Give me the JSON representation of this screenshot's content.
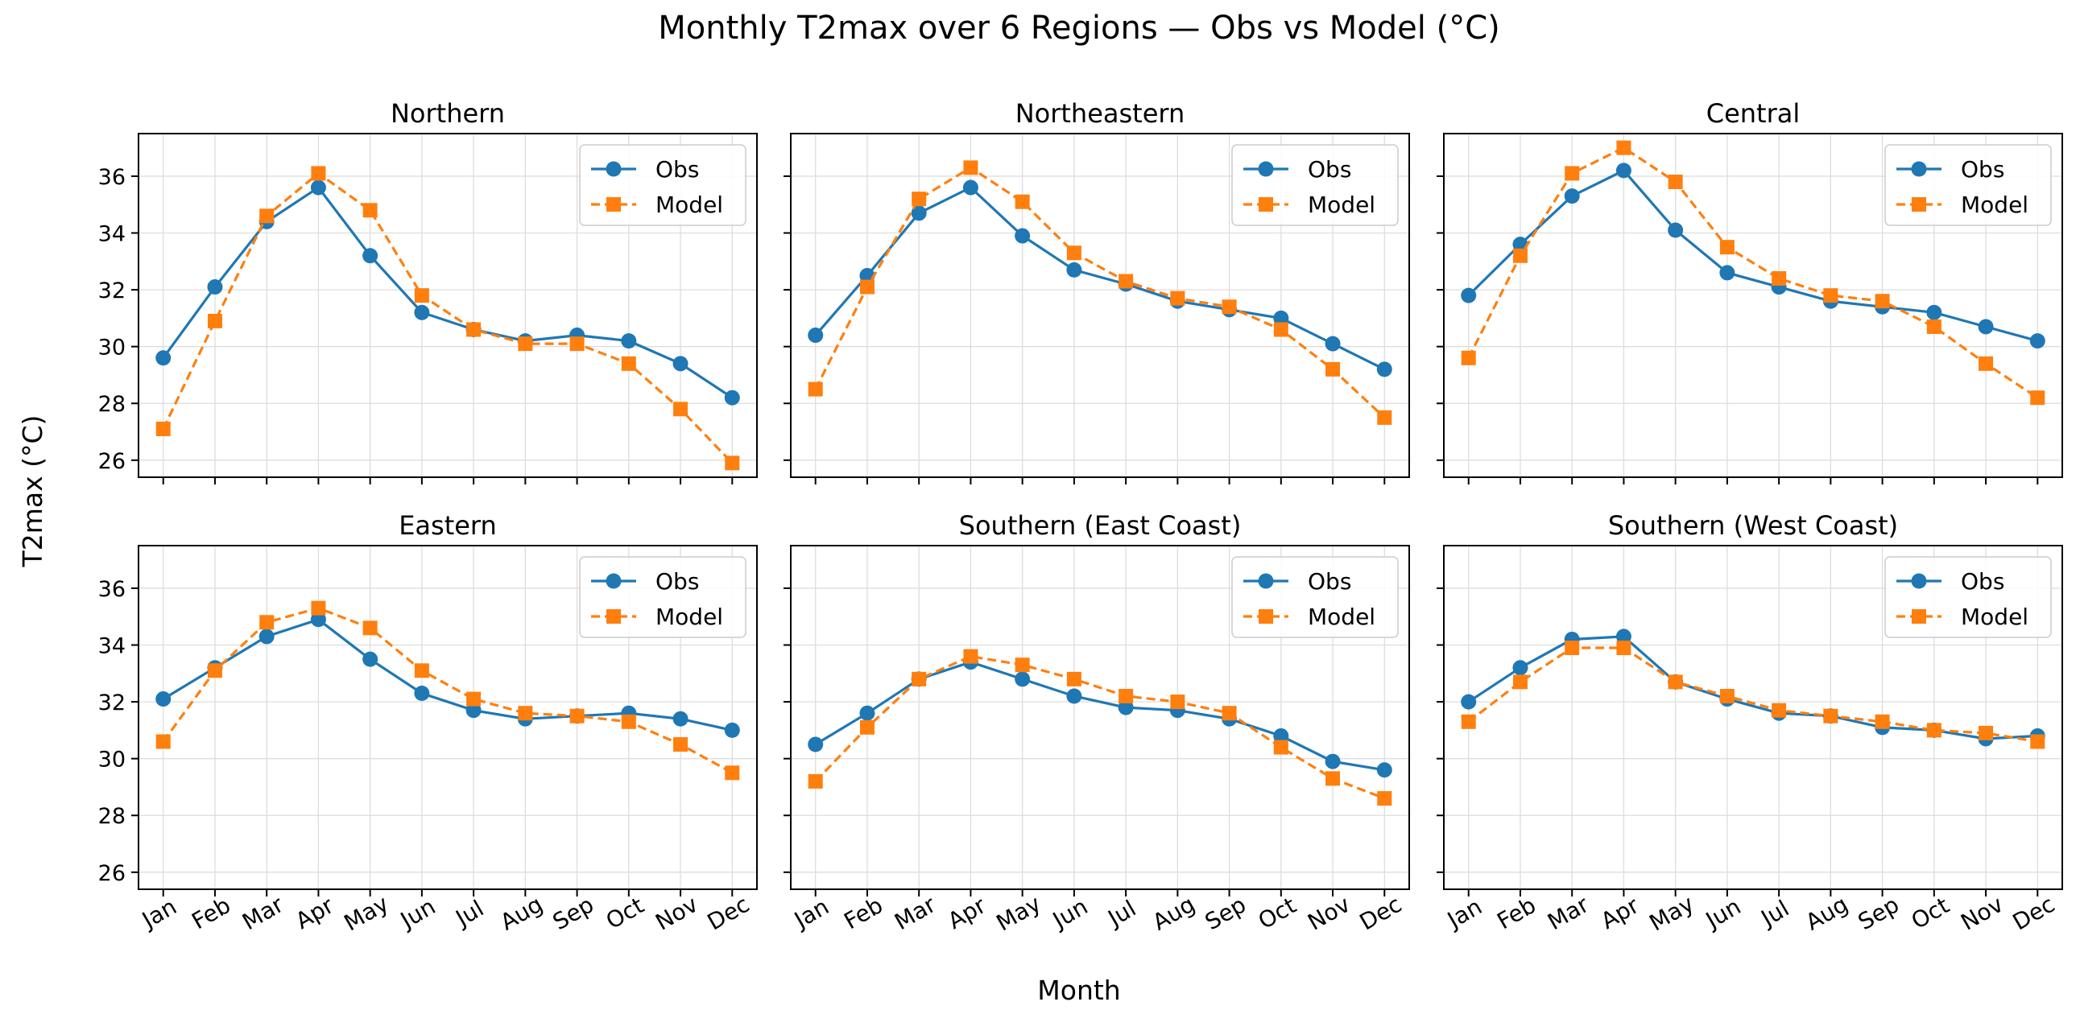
{
  "figure": {
    "title": "Monthly T2max over 6 Regions — Obs vs Model (°C)",
    "xlabel": "Month",
    "ylabel": "T2max (°C)"
  },
  "colors": {
    "obs": "#1f77b4",
    "model": "#ff7f0e",
    "grid": "#dddddd",
    "axis": "#000000"
  },
  "chart_data": [
    {
      "type": "line",
      "title": "Northern",
      "categories": [
        "Jan",
        "Feb",
        "Mar",
        "Apr",
        "May",
        "Jun",
        "Jul",
        "Aug",
        "Sep",
        "Oct",
        "Nov",
        "Dec"
      ],
      "ylim": [
        25.4,
        37.5
      ],
      "yticks": [
        26,
        28,
        30,
        32,
        34,
        36
      ],
      "legend": "top-right",
      "grid": true,
      "series": [
        {
          "name": "Obs",
          "values": [
            29.6,
            32.1,
            34.4,
            35.6,
            33.2,
            31.2,
            30.6,
            30.2,
            30.4,
            30.2,
            29.4,
            28.2
          ]
        },
        {
          "name": "Model",
          "values": [
            27.1,
            30.9,
            34.6,
            36.1,
            34.8,
            31.8,
            30.6,
            30.1,
            30.1,
            29.4,
            27.8,
            25.9
          ]
        }
      ]
    },
    {
      "type": "line",
      "title": "Northeastern",
      "categories": [
        "Jan",
        "Feb",
        "Mar",
        "Apr",
        "May",
        "Jun",
        "Jul",
        "Aug",
        "Sep",
        "Oct",
        "Nov",
        "Dec"
      ],
      "ylim": [
        25.4,
        37.5
      ],
      "yticks": [
        26,
        28,
        30,
        32,
        34,
        36
      ],
      "legend": "top-right",
      "grid": true,
      "series": [
        {
          "name": "Obs",
          "values": [
            30.4,
            32.5,
            34.7,
            35.6,
            33.9,
            32.7,
            32.2,
            31.6,
            31.3,
            31.0,
            30.1,
            29.2
          ]
        },
        {
          "name": "Model",
          "values": [
            28.5,
            32.1,
            35.2,
            36.3,
            35.1,
            33.3,
            32.3,
            31.7,
            31.4,
            30.6,
            29.2,
            27.5
          ]
        }
      ]
    },
    {
      "type": "line",
      "title": "Central",
      "categories": [
        "Jan",
        "Feb",
        "Mar",
        "Apr",
        "May",
        "Jun",
        "Jul",
        "Aug",
        "Sep",
        "Oct",
        "Nov",
        "Dec"
      ],
      "ylim": [
        25.4,
        37.5
      ],
      "yticks": [
        26,
        28,
        30,
        32,
        34,
        36
      ],
      "legend": "top-right",
      "grid": true,
      "series": [
        {
          "name": "Obs",
          "values": [
            31.8,
            33.6,
            35.3,
            36.2,
            34.1,
            32.6,
            32.1,
            31.6,
            31.4,
            31.2,
            30.7,
            30.2
          ]
        },
        {
          "name": "Model",
          "values": [
            29.6,
            33.2,
            36.1,
            37.0,
            35.8,
            33.5,
            32.4,
            31.8,
            31.6,
            30.7,
            29.4,
            28.2
          ]
        }
      ]
    },
    {
      "type": "line",
      "title": "Eastern",
      "categories": [
        "Jan",
        "Feb",
        "Mar",
        "Apr",
        "May",
        "Jun",
        "Jul",
        "Aug",
        "Sep",
        "Oct",
        "Nov",
        "Dec"
      ],
      "ylim": [
        25.4,
        37.5
      ],
      "yticks": [
        26,
        28,
        30,
        32,
        34,
        36
      ],
      "legend": "top-right",
      "grid": true,
      "series": [
        {
          "name": "Obs",
          "values": [
            32.1,
            33.2,
            34.3,
            34.9,
            33.5,
            32.3,
            31.7,
            31.4,
            31.5,
            31.6,
            31.4,
            31.0
          ]
        },
        {
          "name": "Model",
          "values": [
            30.6,
            33.1,
            34.8,
            35.3,
            34.6,
            33.1,
            32.1,
            31.6,
            31.5,
            31.3,
            30.5,
            29.5
          ]
        }
      ]
    },
    {
      "type": "line",
      "title": "Southern (East Coast)",
      "categories": [
        "Jan",
        "Feb",
        "Mar",
        "Apr",
        "May",
        "Jun",
        "Jul",
        "Aug",
        "Sep",
        "Oct",
        "Nov",
        "Dec"
      ],
      "ylim": [
        25.4,
        37.5
      ],
      "yticks": [
        26,
        28,
        30,
        32,
        34,
        36
      ],
      "legend": "top-right",
      "grid": true,
      "series": [
        {
          "name": "Obs",
          "values": [
            30.5,
            31.6,
            32.8,
            33.4,
            32.8,
            32.2,
            31.8,
            31.7,
            31.4,
            30.8,
            29.9,
            29.6
          ]
        },
        {
          "name": "Model",
          "values": [
            29.2,
            31.1,
            32.8,
            33.6,
            33.3,
            32.8,
            32.2,
            32.0,
            31.6,
            30.4,
            29.3,
            28.6
          ]
        }
      ]
    },
    {
      "type": "line",
      "title": "Southern (West Coast)",
      "categories": [
        "Jan",
        "Feb",
        "Mar",
        "Apr",
        "May",
        "Jun",
        "Jul",
        "Aug",
        "Sep",
        "Oct",
        "Nov",
        "Dec"
      ],
      "ylim": [
        25.4,
        37.5
      ],
      "yticks": [
        26,
        28,
        30,
        32,
        34,
        36
      ],
      "legend": "top-right",
      "grid": true,
      "series": [
        {
          "name": "Obs",
          "values": [
            32.0,
            33.2,
            34.2,
            34.3,
            32.7,
            32.1,
            31.6,
            31.5,
            31.1,
            31.0,
            30.7,
            30.8
          ]
        },
        {
          "name": "Model",
          "values": [
            31.3,
            32.7,
            33.9,
            33.9,
            32.7,
            32.2,
            31.7,
            31.5,
            31.3,
            31.0,
            30.9,
            30.6
          ]
        }
      ]
    }
  ]
}
